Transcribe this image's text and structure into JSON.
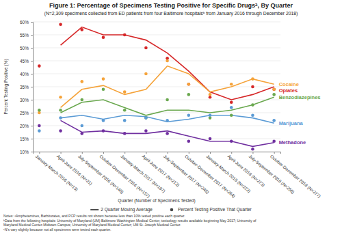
{
  "chart_data": {
    "type": "line",
    "title": "Figure 1: Percentage of Specimens Testing Positive for Specific Drugsᵃ, By Quarter",
    "subtitle": "(N=2,309 specimens collected from ED patients from four Baltimore hospitalsᵇ from January 2016 through December 2018)",
    "x_label": "Quarter (Number of Specimens Tested)",
    "y_label": "Percent Testing Positive (%)",
    "categories": [
      "January-March 2016 (N=13)",
      "April-June 2016 (N=31)",
      "July-September 2016 (N=148)",
      "October-December 2016 (N=157)",
      "January-March 2017 (N=187)",
      "April-June 2017 (N=213)",
      "July-September 2017 (N=248)",
      "October-December 2017 (N=264)",
      "January-March 2018 (N=223)",
      "April-June 2018 (N=273)",
      "July-September 2018 (N=256)",
      "October-December 2018 (N=277)"
    ],
    "series": [
      {
        "name": "Opiates",
        "color": "#d62728",
        "values": [
          43,
          59,
          57,
          54,
          55,
          50,
          46,
          36,
          31,
          29,
          35,
          34
        ],
        "moving_average": [
          null,
          51,
          58,
          55,
          55,
          53,
          48,
          41,
          33,
          30,
          32,
          35
        ]
      },
      {
        "name": "Cocaine",
        "color": "#f5a33a",
        "values": [
          25,
          31,
          37,
          38,
          33,
          40,
          45,
          36,
          32,
          36,
          38,
          34
        ],
        "moving_average": [
          null,
          27,
          34,
          35.5,
          32,
          34,
          43,
          40,
          33,
          35,
          38,
          36
        ]
      },
      {
        "name": "Benzodiazepines",
        "color": "#6aa84f",
        "values": [
          26,
          26,
          30,
          34,
          26,
          23,
          30,
          32,
          23,
          24,
          28,
          32
        ],
        "moving_average": [
          null,
          25,
          29,
          30,
          27,
          24,
          26,
          26,
          25,
          26,
          28,
          31
        ]
      },
      {
        "name": "Marijuana",
        "color": "#5b9bd5",
        "values": [
          18,
          23,
          20,
          22,
          22,
          23,
          22,
          24,
          24,
          27,
          24,
          22
        ],
        "moving_average": [
          null,
          23,
          24,
          22.5,
          24,
          23.5,
          21.5,
          22.5,
          24,
          24,
          23,
          21
        ]
      },
      {
        "name": "Methadone",
        "color": "#7030a0",
        "values": [
          20,
          18,
          17,
          18,
          17,
          18,
          17,
          14,
          15,
          14,
          11,
          14
        ],
        "moving_average": [
          null,
          22,
          17.5,
          18,
          17,
          17,
          18,
          16,
          14,
          14,
          12,
          13.5
        ]
      }
    ],
    "ylim": [
      10,
      60
    ],
    "yticks": [
      {
        "value": 10,
        "label": "10%"
      },
      {
        "value": 15,
        "label": "15%"
      },
      {
        "value": 20,
        "label": "20%"
      },
      {
        "value": 25,
        "label": "25%"
      },
      {
        "value": 30,
        "label": "30%"
      },
      {
        "value": 35,
        "label": "35%"
      },
      {
        "value": 40,
        "label": "40%"
      },
      {
        "value": 45,
        "label": "45%"
      },
      {
        "value": 50,
        "label": "50%"
      },
      {
        "value": 55,
        "label": "55%"
      },
      {
        "value": 60,
        "label": "60%"
      }
    ],
    "grid": true,
    "marker": "circle",
    "line_style": "solid",
    "legend": "bottom",
    "legend_entries": [
      {
        "label": "2 Quarter Moving Average",
        "line_style": "solid"
      },
      {
        "label": "Percent Testing Positive That Quarter",
        "marker": "circle"
      }
    ],
    "notes": [
      "Notes: ᵃAmphetamines, Barbiturates, and PCP results not shown because less than 10% tested positive each quarter.",
      "ᵇData from the following hospitals: University of Maryland (UM) Baltimore Washington Medical Center, toxicology results available beginning May 2017; University of",
      "Maryland Medical Center-Midtown Campus; University of Maryland Medical Center; UM St. Joseph Medical Center.",
      "ᶜN's vary slightly because not all specimens were tested each quarter."
    ]
  }
}
